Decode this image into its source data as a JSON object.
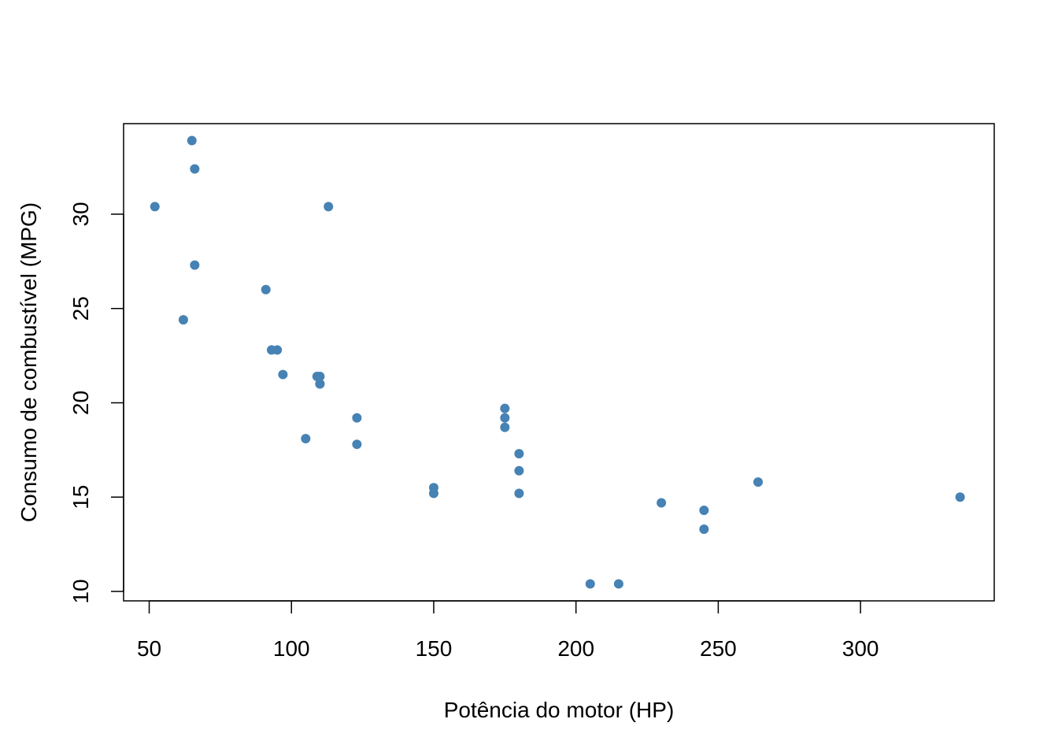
{
  "chart_data": {
    "type": "scatter",
    "title": "",
    "xlabel": "Potência do motor (HP)",
    "ylabel": "Consumo de combustível (MPG)",
    "xlim": [
      41,
      347
    ],
    "ylim": [
      9.5,
      34.8
    ],
    "x_ticks": [
      50,
      100,
      150,
      200,
      250,
      300
    ],
    "y_ticks": [
      10,
      15,
      20,
      25,
      30
    ],
    "x_tick_labels": [
      "50",
      "100",
      "150",
      "200",
      "250",
      "300"
    ],
    "y_tick_labels": [
      "10",
      "15",
      "20",
      "25",
      "30"
    ],
    "grid": false,
    "point_color": "#4682B4",
    "points": [
      {
        "x": 110,
        "y": 21.0
      },
      {
        "x": 110,
        "y": 21.0
      },
      {
        "x": 93,
        "y": 22.8
      },
      {
        "x": 110,
        "y": 21.4
      },
      {
        "x": 175,
        "y": 18.7
      },
      {
        "x": 105,
        "y": 18.1
      },
      {
        "x": 245,
        "y": 14.3
      },
      {
        "x": 62,
        "y": 24.4
      },
      {
        "x": 95,
        "y": 22.8
      },
      {
        "x": 123,
        "y": 19.2
      },
      {
        "x": 123,
        "y": 17.8
      },
      {
        "x": 180,
        "y": 16.4
      },
      {
        "x": 180,
        "y": 17.3
      },
      {
        "x": 180,
        "y": 15.2
      },
      {
        "x": 205,
        "y": 10.4
      },
      {
        "x": 215,
        "y": 10.4
      },
      {
        "x": 230,
        "y": 14.7
      },
      {
        "x": 66,
        "y": 32.4
      },
      {
        "x": 52,
        "y": 30.4
      },
      {
        "x": 65,
        "y": 33.9
      },
      {
        "x": 97,
        "y": 21.5
      },
      {
        "x": 150,
        "y": 15.5
      },
      {
        "x": 150,
        "y": 15.2
      },
      {
        "x": 245,
        "y": 13.3
      },
      {
        "x": 175,
        "y": 19.2
      },
      {
        "x": 66,
        "y": 27.3
      },
      {
        "x": 91,
        "y": 26.0
      },
      {
        "x": 113,
        "y": 30.4
      },
      {
        "x": 264,
        "y": 15.8
      },
      {
        "x": 175,
        "y": 19.7
      },
      {
        "x": 335,
        "y": 15.0
      },
      {
        "x": 109,
        "y": 21.4
      }
    ]
  }
}
